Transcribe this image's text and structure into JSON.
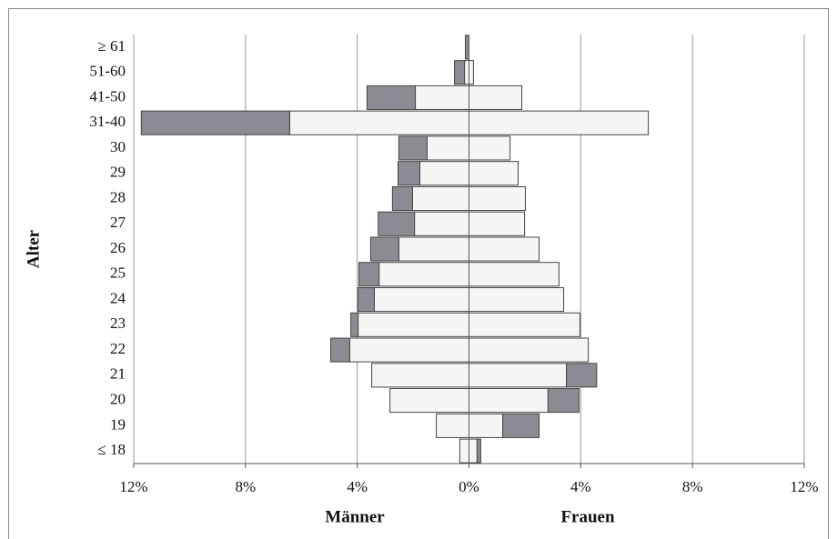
{
  "chart_data": {
    "type": "stacked_barh",
    "ylabel": "Alter",
    "xlabels": [
      "Männer",
      "Frauen"
    ],
    "categories": [
      "≤ 18",
      "19",
      "20",
      "21",
      "22",
      "23",
      "24",
      "25",
      "26",
      "27",
      "28",
      "29",
      "30",
      "31-40",
      "41-50",
      "51-60",
      "≥ 61"
    ],
    "series": [
      {
        "color": "#f4f5f4",
        "values": [
          -0.33,
          -1.17,
          -2.83,
          -3.48,
          -4.27,
          -3.97,
          -3.39,
          -3.22,
          -2.51,
          -1.95,
          -2.02,
          -1.76,
          -1.5,
          -6.42,
          -1.92,
          -0.16,
          0
        ]
      },
      {
        "color": "#8c8b93",
        "values": [
          0,
          0,
          0,
          0,
          -0.68,
          -0.26,
          -0.59,
          -0.72,
          -1.01,
          -1.3,
          -0.72,
          -0.78,
          -1.01,
          -5.31,
          -1.73,
          -0.36,
          -0.13
        ]
      },
      {
        "color": "#f4f5f4",
        "values": [
          0.29,
          1.21,
          2.83,
          3.49,
          4.27,
          3.97,
          3.39,
          3.22,
          2.51,
          1.99,
          2.02,
          1.76,
          1.47,
          6.42,
          1.89,
          0.16,
          0
        ]
      },
      {
        "color": "#8c8b93",
        "values": [
          0.13,
          1.3,
          1.11,
          1.08,
          0,
          0,
          0,
          0,
          0,
          0,
          0,
          0,
          0,
          0,
          0,
          0,
          0
        ]
      }
    ],
    "xlim": [
      -12,
      12
    ],
    "xticks": [
      {
        "value": -12,
        "label": "12%"
      },
      {
        "value": -8,
        "label": "8%"
      },
      {
        "value": -4,
        "label": "4%"
      },
      {
        "value": 0,
        "label": "0%"
      },
      {
        "value": 4,
        "label": "4%"
      },
      {
        "value": 8,
        "label": "8%"
      },
      {
        "value": 12,
        "label": "12%"
      }
    ],
    "grid": true
  }
}
